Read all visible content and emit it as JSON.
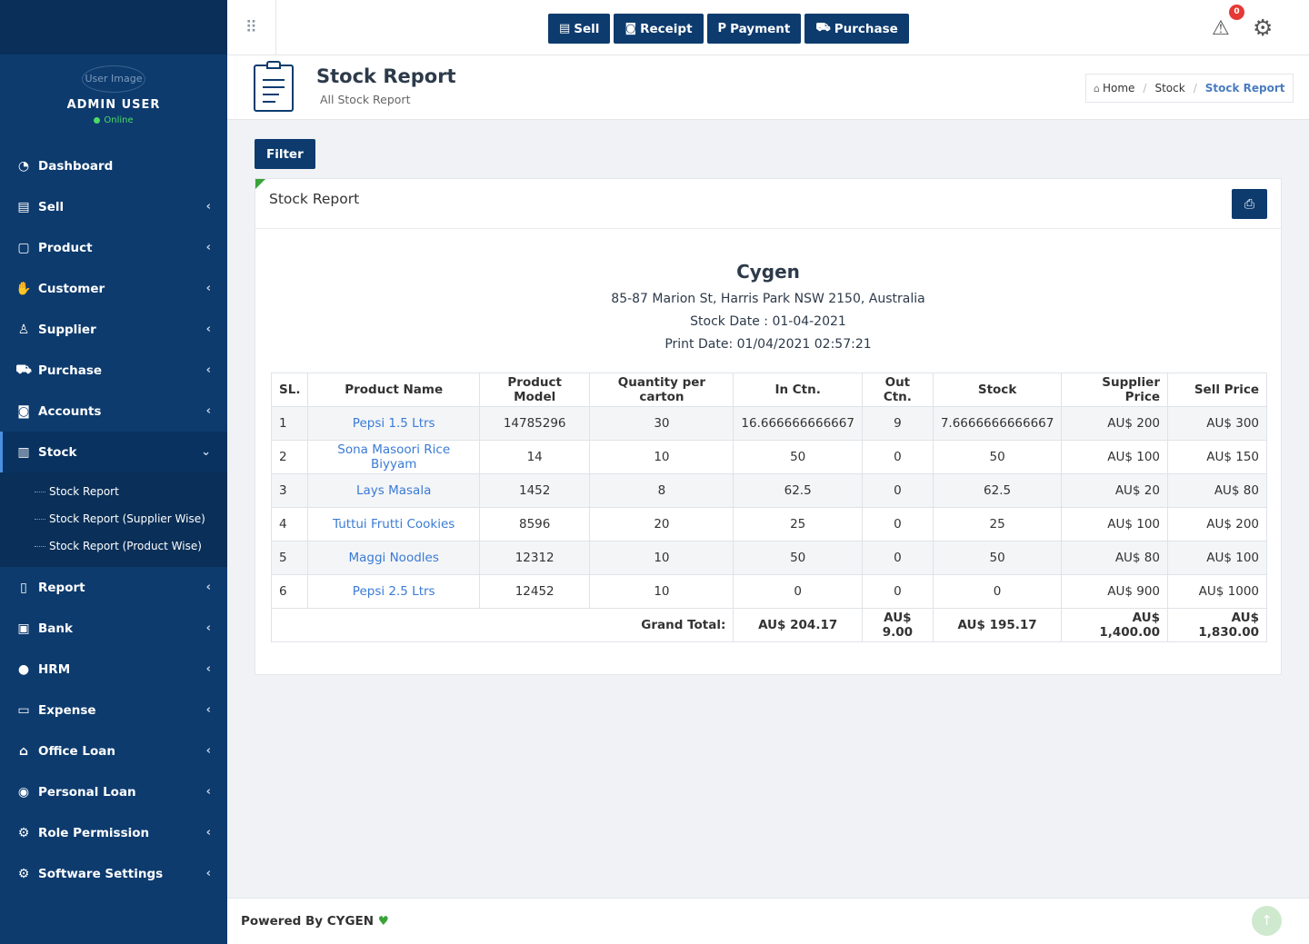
{
  "user": {
    "avatar_alt": "User Image",
    "name": "ADMIN USER",
    "status": "Online"
  },
  "sidebar": {
    "items": [
      {
        "label": "Dashboard",
        "icon": "dashboard-icon"
      },
      {
        "label": "Sell",
        "icon": "cash-register-icon"
      },
      {
        "label": "Product",
        "icon": "box-icon"
      },
      {
        "label": "Customer",
        "icon": "handshake-icon"
      },
      {
        "label": "Supplier",
        "icon": "user-icon"
      },
      {
        "label": "Purchase",
        "icon": "cart-icon"
      },
      {
        "label": "Accounts",
        "icon": "money-icon"
      },
      {
        "label": "Stock",
        "icon": "bar-chart-icon"
      },
      {
        "label": "Report",
        "icon": "book-icon"
      },
      {
        "label": "Bank",
        "icon": "briefcase-icon"
      },
      {
        "label": "HRM",
        "icon": "person-icon"
      },
      {
        "label": "Expense",
        "icon": "credit-card-icon"
      },
      {
        "label": "Office Loan",
        "icon": "bank-icon"
      },
      {
        "label": "Personal Loan",
        "icon": "user-circle-icon"
      },
      {
        "label": "Role Permission",
        "icon": "gear-icon"
      },
      {
        "label": "Software Settings",
        "icon": "gear-icon"
      }
    ],
    "stock_submenu": [
      "Stock Report",
      "Stock Report (Supplier Wise)",
      "Stock Report (Product Wise)"
    ]
  },
  "topbar": {
    "buttons": [
      {
        "label": "Sell",
        "icon": "cash-register-icon"
      },
      {
        "label": "Receipt",
        "icon": "money-icon"
      },
      {
        "label": "Payment",
        "icon": "paypal-icon"
      },
      {
        "label": "Purchase",
        "icon": "cart-icon"
      }
    ],
    "alert_count": "0"
  },
  "page": {
    "title": "Stock Report",
    "subtitle": "All Stock Report",
    "breadcrumb": [
      "Home",
      "Stock",
      "Stock Report"
    ]
  },
  "filter_label": "Filter",
  "card_title": "Stock Report",
  "report": {
    "company": "Cygen",
    "address": "85-87 Marion St, Harris Park NSW 2150, Australia",
    "stock_date": "Stock Date : 01-04-2021",
    "print_date": "Print Date: 01/04/2021 02:57:21"
  },
  "table": {
    "headers": [
      "SL.",
      "Product Name",
      "Product Model",
      "Quantity per carton",
      "In Ctn.",
      "Out Ctn.",
      "Stock",
      "Supplier Price",
      "Sell Price"
    ],
    "rows": [
      [
        "1",
        "Pepsi 1.5 Ltrs",
        "14785296",
        "30",
        "16.666666666667",
        "9",
        "7.6666666666667",
        "AU$ 200",
        "AU$ 300"
      ],
      [
        "2",
        "Sona Masoori Rice Biyyam",
        "14",
        "10",
        "50",
        "0",
        "50",
        "AU$ 100",
        "AU$ 150"
      ],
      [
        "3",
        "Lays Masala",
        "1452",
        "8",
        "62.5",
        "0",
        "62.5",
        "AU$ 20",
        "AU$ 80"
      ],
      [
        "4",
        "Tuttui Frutti Cookies",
        "8596",
        "20",
        "25",
        "0",
        "25",
        "AU$ 100",
        "AU$ 200"
      ],
      [
        "5",
        "Maggi Noodles",
        "12312",
        "10",
        "50",
        "0",
        "50",
        "AU$ 80",
        "AU$ 100"
      ],
      [
        "6",
        "Pepsi 2.5 Ltrs",
        "12452",
        "10",
        "0",
        "0",
        "0",
        "AU$ 900",
        "AU$ 1000"
      ]
    ],
    "totals": {
      "label": "Grand Total:",
      "in_ctn": "AU$ 204.17",
      "out_ctn": "AU$ 9.00",
      "stock": "AU$ 195.17",
      "supplier_price": "AU$ 1,400.00",
      "sell_price": "AU$ 1,830.00"
    }
  },
  "footer": {
    "text": "Powered By CYGEN"
  }
}
